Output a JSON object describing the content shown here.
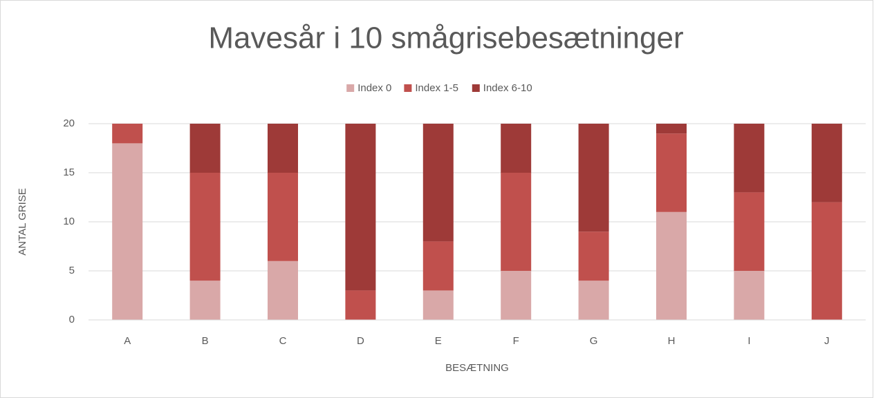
{
  "chart_data": {
    "type": "stacked_bar",
    "title": "Mavesår i 10 smågrisebesætninger",
    "x_label": "BESÆTNING",
    "y_label": "ANTAL GRISE",
    "categories": [
      "A",
      "B",
      "C",
      "D",
      "E",
      "F",
      "G",
      "H",
      "I",
      "J"
    ],
    "series": [
      {
        "name": "Index 0",
        "color": "#d9a8a8",
        "values": [
          18,
          4,
          6,
          0,
          3,
          5,
          4,
          11,
          5,
          0
        ]
      },
      {
        "name": "Index 1-5",
        "color": "#c0504d",
        "values": [
          2,
          11,
          9,
          3,
          5,
          10,
          5,
          8,
          8,
          12
        ]
      },
      {
        "name": "Index 6-10",
        "color": "#9e3a38",
        "values": [
          0,
          5,
          5,
          17,
          12,
          5,
          11,
          1,
          7,
          8
        ]
      }
    ],
    "ylim": [
      0,
      20
    ],
    "yticks": [
      0,
      5,
      10,
      15,
      20
    ],
    "grid": true,
    "legend": "top"
  }
}
